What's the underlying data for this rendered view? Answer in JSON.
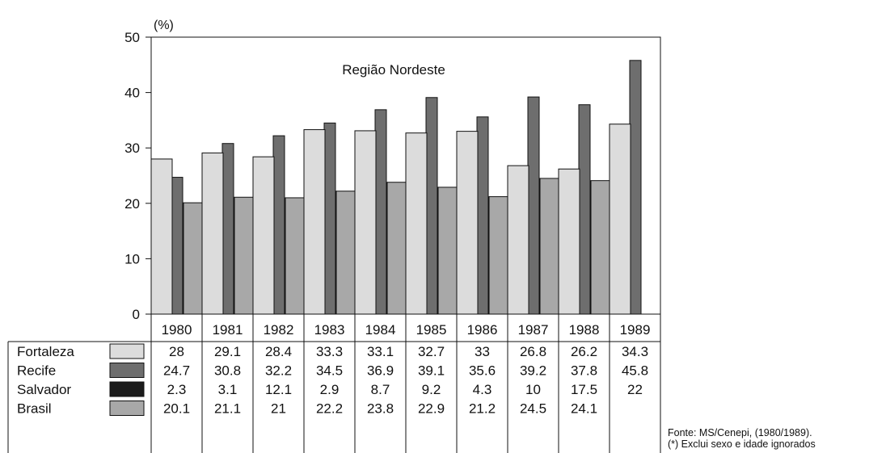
{
  "chart_data": {
    "type": "bar",
    "title": "Região Nordeste",
    "ylabel": "(%)",
    "ylim": [
      0,
      50
    ],
    "yticks": [
      0,
      10,
      20,
      30,
      40,
      50
    ],
    "categories": [
      "1980",
      "1981",
      "1982",
      "1983",
      "1984",
      "1985",
      "1986",
      "1987",
      "1988",
      "1989"
    ],
    "series": [
      {
        "name": "Fortaleza",
        "color": "#dcdcdc",
        "values": [
          28,
          29.1,
          28.4,
          33.3,
          33.1,
          32.7,
          33,
          26.8,
          26.2,
          34.3
        ],
        "table": [
          "28",
          "29.1",
          "28.4",
          "33.3",
          "33.1",
          "32.7",
          "33",
          "26.8",
          "26.2",
          "34.3"
        ]
      },
      {
        "name": "Recife",
        "color": "#6e6e6e",
        "values": [
          24.7,
          30.8,
          32.2,
          34.5,
          36.9,
          39.1,
          35.6,
          39.2,
          37.8,
          45.8
        ],
        "table": [
          "24.7",
          "30.8",
          "32.2",
          "34.5",
          "36.9",
          "39.1",
          "35.6",
          "39.2",
          "37.8",
          "45.8"
        ]
      },
      {
        "name": "Salvador",
        "color": "#1c1c1c",
        "values": [
          2.3,
          3.1,
          12.1,
          2.9,
          8.7,
          9.2,
          4.3,
          10,
          17.5,
          22
        ],
        "table": [
          "2.3",
          "3.1",
          "12.1",
          "2.9",
          "8.7",
          "9.2",
          "4.3",
          "10",
          "17.5",
          "22"
        ]
      },
      {
        "name": "Brasil",
        "color": "#a8a8a8",
        "values": [
          20.1,
          21.1,
          21,
          22.2,
          23.8,
          22.9,
          21.2,
          24.5,
          24.1,
          null
        ],
        "table": [
          "20.1",
          "21.1",
          "21",
          "22.2",
          "23.8",
          "22.9",
          "21.2",
          "24.5",
          "24.1",
          ""
        ]
      }
    ],
    "grid": false,
    "legend": "table-below"
  },
  "footnotes": {
    "source": "Fonte: MS/Cenepi, (1980/1989).",
    "note": "(*) Exclui sexo e idade ignorados"
  }
}
